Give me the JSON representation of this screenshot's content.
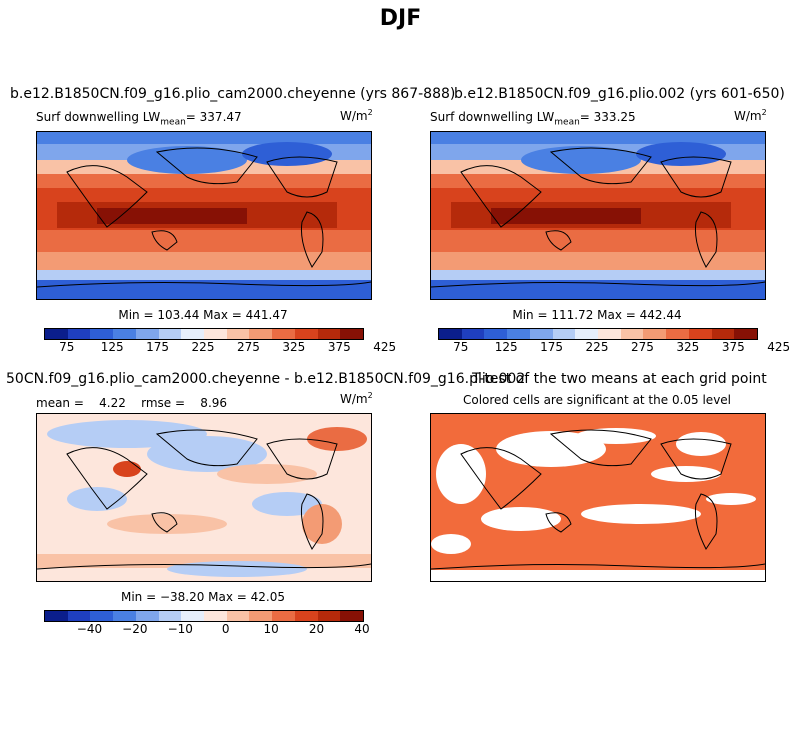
{
  "main_title": "DJF",
  "panels": [
    {
      "title": "b.e12.B1850CN.f09_g16.plio_cam2000.cheyenne (yrs 867-888)",
      "sub_left": "Surf downwelling LW",
      "sub_mean_word": "mean",
      "sub_mean_value": "= 337.47",
      "units": "W/m",
      "units_exp": "2",
      "minmax": "Min = 103.44 Max = 441.47",
      "colorbar_ticks": [
        "75",
        "125",
        "175",
        "225",
        "275",
        "325",
        "375",
        "425"
      ]
    },
    {
      "title": "b.e12.B1850CN.f09_g16.plio.002 (yrs 601-650)",
      "sub_left": "Surf downwelling LW",
      "sub_mean_word": "mean",
      "sub_mean_value": "= 333.25",
      "units": "W/m",
      "units_exp": "2",
      "minmax": "Min = 111.72 Max = 442.44",
      "colorbar_ticks": [
        "75",
        "125",
        "175",
        "225",
        "275",
        "325",
        "375",
        "425"
      ]
    },
    {
      "title": "50CN.f09_g16.plio_cam2000.cheyenne - b.e12.B1850CN.f09_g16.plio.002",
      "sub_left": "mean =    4.22    rmse =    8.96",
      "units": "W/m",
      "units_exp": "2",
      "minmax": "Min = −38.20 Max =  42.05",
      "colorbar_ticks": [
        "−40",
        "−20",
        "−10",
        "0",
        "10",
        "20",
        "40"
      ]
    },
    {
      "title": "T-test of the two means at each grid point",
      "sub_center": "Colored cells are significant at the 0.05 level"
    }
  ],
  "colors": {
    "abs_scale": [
      "#0b1e8c",
      "#1f3fbf",
      "#2e5fd6",
      "#4a80e3",
      "#7fa6ec",
      "#b5cdf5",
      "#e6eefb",
      "#fde6dc",
      "#f9c2a6",
      "#f39b74",
      "#ea6c43",
      "#d8431d",
      "#b52a0b",
      "#871105"
    ],
    "diff_scale": [
      "#0b1e8c",
      "#1f3fbf",
      "#2e5fd6",
      "#4a80e3",
      "#7fa6ec",
      "#b5cdf5",
      "#e6eefb",
      "#fde6dc",
      "#f9c2a6",
      "#f39b74",
      "#ea6c43",
      "#d8431d",
      "#b52a0b",
      "#871105"
    ],
    "ttest_fill": "#f26b3b"
  }
}
